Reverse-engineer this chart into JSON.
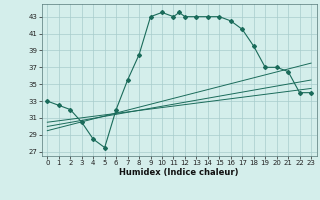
{
  "xlabel": "Humidex (Indice chaleur)",
  "bg_color": "#d4eeeb",
  "grid_color": "#a8cccc",
  "line_color": "#1a6b5a",
  "xlim": [
    -0.5,
    23.5
  ],
  "ylim": [
    26.5,
    44.5
  ],
  "yticks": [
    27,
    29,
    31,
    33,
    35,
    37,
    39,
    41,
    43
  ],
  "xticks": [
    0,
    1,
    2,
    3,
    4,
    5,
    6,
    7,
    8,
    9,
    10,
    11,
    12,
    13,
    14,
    15,
    16,
    17,
    18,
    19,
    20,
    21,
    22,
    23
  ],
  "main_x": [
    0,
    1,
    2,
    3,
    4,
    5,
    6,
    7,
    8,
    9,
    10,
    11,
    11.5,
    12,
    13,
    14,
    15,
    16,
    17,
    18,
    19,
    20,
    21,
    22,
    23
  ],
  "main_y": [
    33,
    32.5,
    32,
    30.5,
    28.5,
    27.5,
    32,
    35.5,
    38.5,
    43,
    43.5,
    43,
    43.5,
    43,
    43,
    43,
    43,
    42.5,
    41.5,
    39.5,
    37,
    37,
    36.5,
    34,
    34
  ],
  "line1_x": [
    0,
    23
  ],
  "line1_y": [
    30.5,
    34.5
  ],
  "line2_x": [
    0,
    23
  ],
  "line2_y": [
    30,
    35.5
  ],
  "line3_x": [
    0,
    23
  ],
  "line3_y": [
    29.5,
    37.5
  ]
}
